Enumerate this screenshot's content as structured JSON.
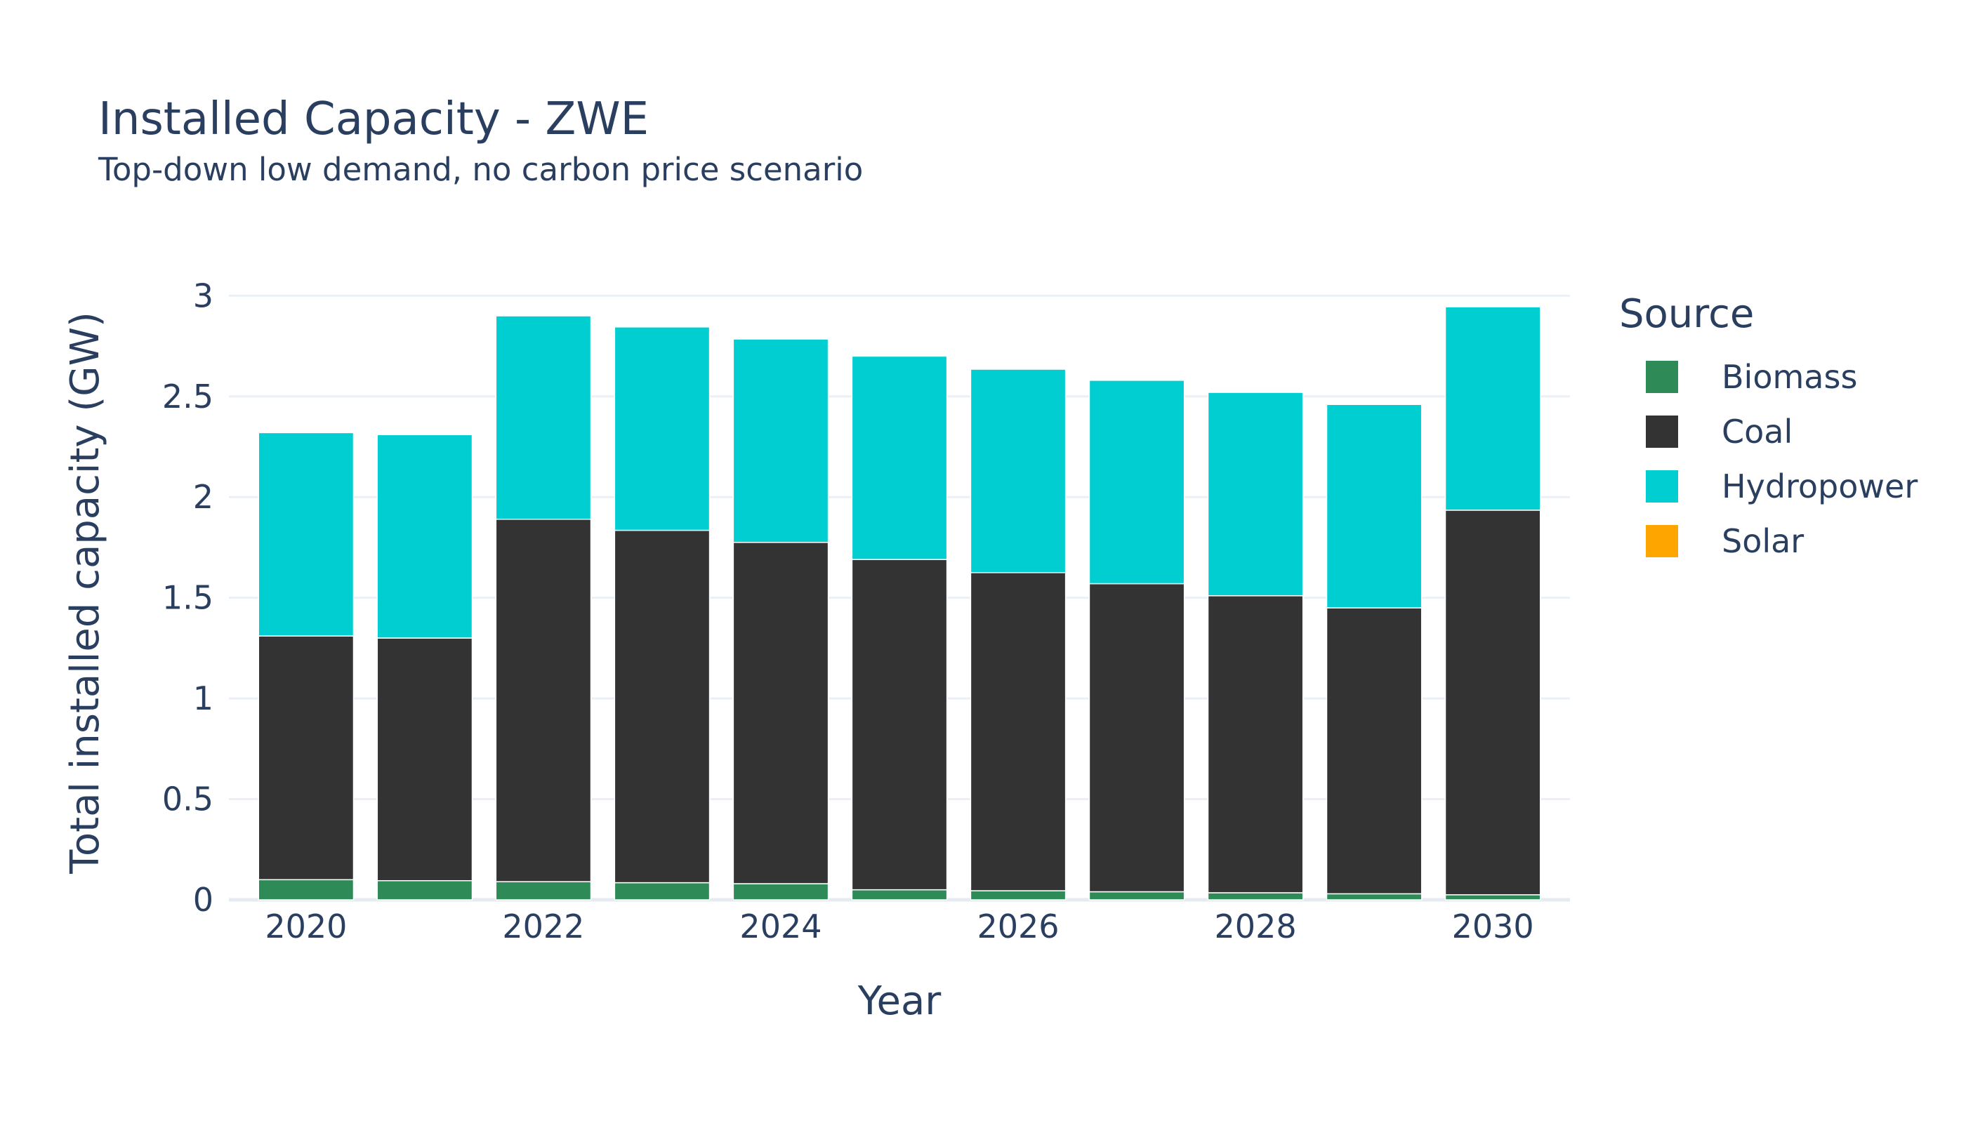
{
  "chart_data": {
    "type": "bar",
    "barmode": "stack",
    "title": "Installed Capacity - ZWE",
    "subtitle": "Top-down low demand, no carbon price scenario",
    "xlabel": "Year",
    "ylabel": "Total installed capacity (GW)",
    "ylim": [
      0,
      3.05
    ],
    "yticks": [
      0,
      0.5,
      1,
      1.5,
      2,
      2.5,
      3
    ],
    "ytick_labels": [
      "0",
      "0.5",
      "1",
      "1.5",
      "2",
      "2.5",
      "3"
    ],
    "xticks": [
      2020,
      2022,
      2024,
      2026,
      2028,
      2030
    ],
    "xtick_labels": [
      "2020",
      "2022",
      "2024",
      "2026",
      "2028",
      "2030"
    ],
    "x": [
      2020,
      2021,
      2022,
      2023,
      2024,
      2025,
      2026,
      2027,
      2028,
      2029,
      2030
    ],
    "grid": true,
    "legend": {
      "title": "Source",
      "position": "right"
    },
    "series": [
      {
        "name": "Biomass",
        "color": "#2e8b57",
        "values": [
          0.1,
          0.095,
          0.09,
          0.085,
          0.08,
          0.05,
          0.045,
          0.04,
          0.035,
          0.03,
          0.025
        ]
      },
      {
        "name": "Coal",
        "color": "#333333",
        "values": [
          1.21,
          1.205,
          1.8,
          1.75,
          1.695,
          1.64,
          1.58,
          1.53,
          1.475,
          1.42,
          1.91
        ]
      },
      {
        "name": "Hydropower",
        "color": "#00ced1",
        "values": [
          1.01,
          1.01,
          1.01,
          1.01,
          1.01,
          1.01,
          1.01,
          1.01,
          1.01,
          1.01,
          1.01
        ]
      },
      {
        "name": "Solar",
        "color": "#ffa500",
        "values": [
          0,
          0,
          0,
          0,
          0,
          0,
          0,
          0,
          0,
          0,
          0
        ]
      }
    ]
  }
}
